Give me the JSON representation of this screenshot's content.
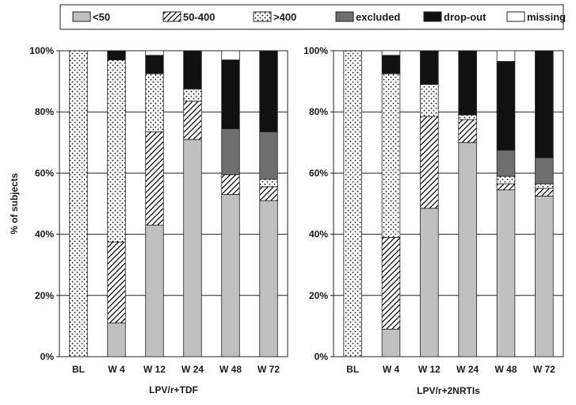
{
  "chart_data": {
    "type": "bar",
    "stacked": true,
    "ylabel": "% of subjects",
    "ylim": [
      0,
      100
    ],
    "yticks": [
      "0%",
      "20%",
      "40%",
      "60%",
      "80%",
      "100%"
    ],
    "grid": true,
    "legend_position": "top",
    "legend": [
      {
        "name": "<50",
        "pattern": "solid-light-gray",
        "color": "#c0c0c0"
      },
      {
        "name": "50-400",
        "pattern": "diagonal-hatch",
        "color": "#ffffff"
      },
      {
        "name": ">400",
        "pattern": "dots",
        "color": "#ffffff"
      },
      {
        "name": "excluded",
        "pattern": "solid-dark-gray",
        "color": "#6f6f6f"
      },
      {
        "name": "drop-out",
        "pattern": "solid-black",
        "color": "#111111"
      },
      {
        "name": "missing",
        "pattern": "solid-white",
        "color": "#ffffff"
      }
    ],
    "panels": [
      {
        "xlabel": "LPV/r+TDF",
        "categories": [
          "BL",
          "W 4",
          "W 12",
          "W 24",
          "W 48",
          "W 72"
        ],
        "series": [
          {
            "name": "<50",
            "values": [
              0,
              11,
              43,
              71,
              53,
              51
            ]
          },
          {
            "name": "50-400",
            "values": [
              0,
              26.5,
              30.5,
              12.5,
              6.5,
              4.5
            ]
          },
          {
            "name": ">400",
            "values": [
              100,
              59.5,
              19,
              4,
              0,
              2.5
            ]
          },
          {
            "name": "excluded",
            "values": [
              0,
              0,
              0,
              0,
              15,
              15.5
            ]
          },
          {
            "name": "drop-out",
            "values": [
              0,
              3,
              6,
              12.5,
              22.5,
              26.5
            ]
          },
          {
            "name": "missing",
            "values": [
              0,
              0,
              1.5,
              0,
              3,
              0
            ]
          }
        ]
      },
      {
        "xlabel": "LPV/r+2NRTIs",
        "categories": [
          "BL",
          "W 4",
          "W 12",
          "W 24",
          "W 48",
          "W 72"
        ],
        "series": [
          {
            "name": "<50",
            "values": [
              0,
              9,
              48.5,
              70,
              54.5,
              52.5
            ]
          },
          {
            "name": "50-400",
            "values": [
              0,
              30,
              30,
              7.5,
              2,
              2.5
            ]
          },
          {
            "name": ">400",
            "values": [
              100,
              53.5,
              10.5,
              1.5,
              2.5,
              1.5
            ]
          },
          {
            "name": "excluded",
            "values": [
              0,
              0,
              0,
              0,
              8.5,
              8.5
            ]
          },
          {
            "name": "drop-out",
            "values": [
              0,
              6,
              11,
              21,
              29,
              35
            ]
          },
          {
            "name": "missing",
            "values": [
              0,
              1.5,
              0,
              0,
              3.5,
              0
            ]
          }
        ]
      }
    ]
  }
}
